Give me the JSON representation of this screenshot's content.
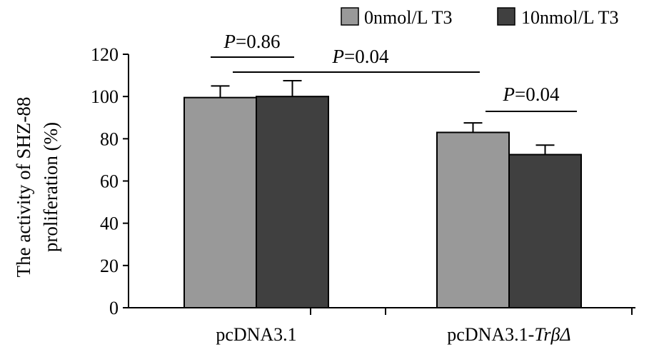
{
  "chart_data": {
    "type": "bar",
    "categories": [
      "pcDNA3.1",
      "pcDNA3.1-"
    ],
    "category_suffix_italic": [
      "",
      "TrβΔ"
    ],
    "series": [
      {
        "name": "0nmol/L T3",
        "values": [
          99.5,
          83
        ],
        "errors": [
          5.5,
          4.5
        ],
        "color": "#999999"
      },
      {
        "name": "10nmol/L T3",
        "values": [
          100,
          72.5
        ],
        "errors": [
          7.5,
          4.5
        ],
        "color": "#404040"
      }
    ],
    "title": "",
    "xlabel": "",
    "ylabel_line1": "The activity of SHZ-88",
    "ylabel_line2": "proliferation (%)",
    "ylim": [
      0,
      120
    ],
    "yticks": [
      0,
      20,
      40,
      60,
      80,
      100,
      120
    ],
    "legend_position": "top-right",
    "annotations": [
      {
        "p_letter": "P",
        "text": "=0.86",
        "between": "pcDNA3.1 groups"
      },
      {
        "p_letter": "P",
        "text": "=0.04",
        "between": "pcDNA3.1 10nmol/L vs pcDNA3.1-TrβΔ 0nmol/L"
      },
      {
        "p_letter": "P",
        "text": "=0.04",
        "between": "pcDNA3.1-TrβΔ groups"
      }
    ]
  }
}
